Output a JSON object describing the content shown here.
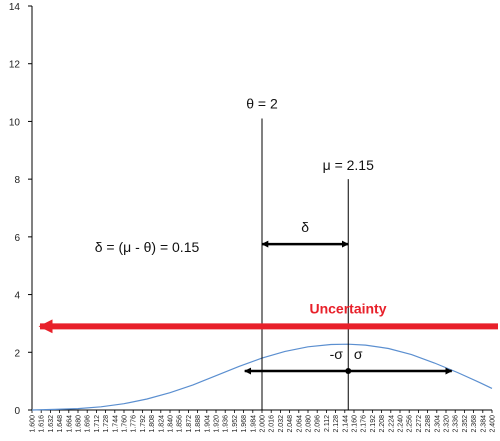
{
  "chart_data": {
    "type": "line",
    "title": "",
    "xlabel": "",
    "ylabel": "",
    "xlim": [
      1.6,
      2.4
    ],
    "ylim": [
      0,
      14
    ],
    "grid": false,
    "yticks": [
      "0",
      "2",
      "4",
      "6",
      "8",
      "10",
      "12",
      "14"
    ],
    "xticks": [
      "1.600",
      "1.616",
      "1.632",
      "1.648",
      "1.664",
      "1.680",
      "1.696",
      "1.712",
      "1.728",
      "1.744",
      "1.760",
      "1.776",
      "1.792",
      "1.808",
      "1.824",
      "1.840",
      "1.856",
      "1.872",
      "1.888",
      "1.904",
      "1.920",
      "1.936",
      "1.952",
      "1.968",
      "1.984",
      "2.000",
      "2.016",
      "2.032",
      "2.048",
      "2.064",
      "2.080",
      "2.096",
      "2.112",
      "2.128",
      "2.144",
      "2.160",
      "2.176",
      "2.192",
      "2.208",
      "2.224",
      "2.240",
      "2.256",
      "2.272",
      "2.288",
      "2.304",
      "2.320",
      "2.336",
      "2.352",
      "2.368",
      "2.384",
      "2.400"
    ],
    "curve": {
      "color": "#5b8fd0",
      "x": [
        1.6,
        1.64,
        1.68,
        1.72,
        1.76,
        1.8,
        1.84,
        1.88,
        1.92,
        1.96,
        2.0,
        2.04,
        2.08,
        2.12,
        2.15,
        2.18,
        2.22,
        2.26,
        2.3,
        2.34,
        2.38,
        2.4
      ],
      "y": [
        0.0,
        0.02,
        0.05,
        0.11,
        0.22,
        0.38,
        0.6,
        0.87,
        1.19,
        1.51,
        1.8,
        2.03,
        2.19,
        2.27,
        2.28,
        2.25,
        2.13,
        1.92,
        1.63,
        1.3,
        0.94,
        0.75
      ]
    },
    "theta": {
      "label": "θ = 2",
      "x": 2.0,
      "y_top": 10.1
    },
    "mu": {
      "label": "μ = 2.15",
      "x": 2.15,
      "y_top": 8.0
    },
    "delta": {
      "label": "δ",
      "formula": "δ = (μ - θ) = 0.15",
      "x_from": 2.0,
      "x_to": 2.15,
      "y": 5.75
    },
    "sigma": {
      "minus_label": "-σ",
      "plus_label": "σ",
      "x_from": 1.97,
      "x_to": 2.33,
      "y": 1.35,
      "center": 2.15
    },
    "uncertainty": {
      "label": "Uncertainty",
      "color": "#e8202a",
      "x_from": 2.4,
      "x_to": 1.6,
      "y": 2.9
    },
    "colors": {
      "axis": "#000000",
      "annotation": "#000000"
    }
  }
}
